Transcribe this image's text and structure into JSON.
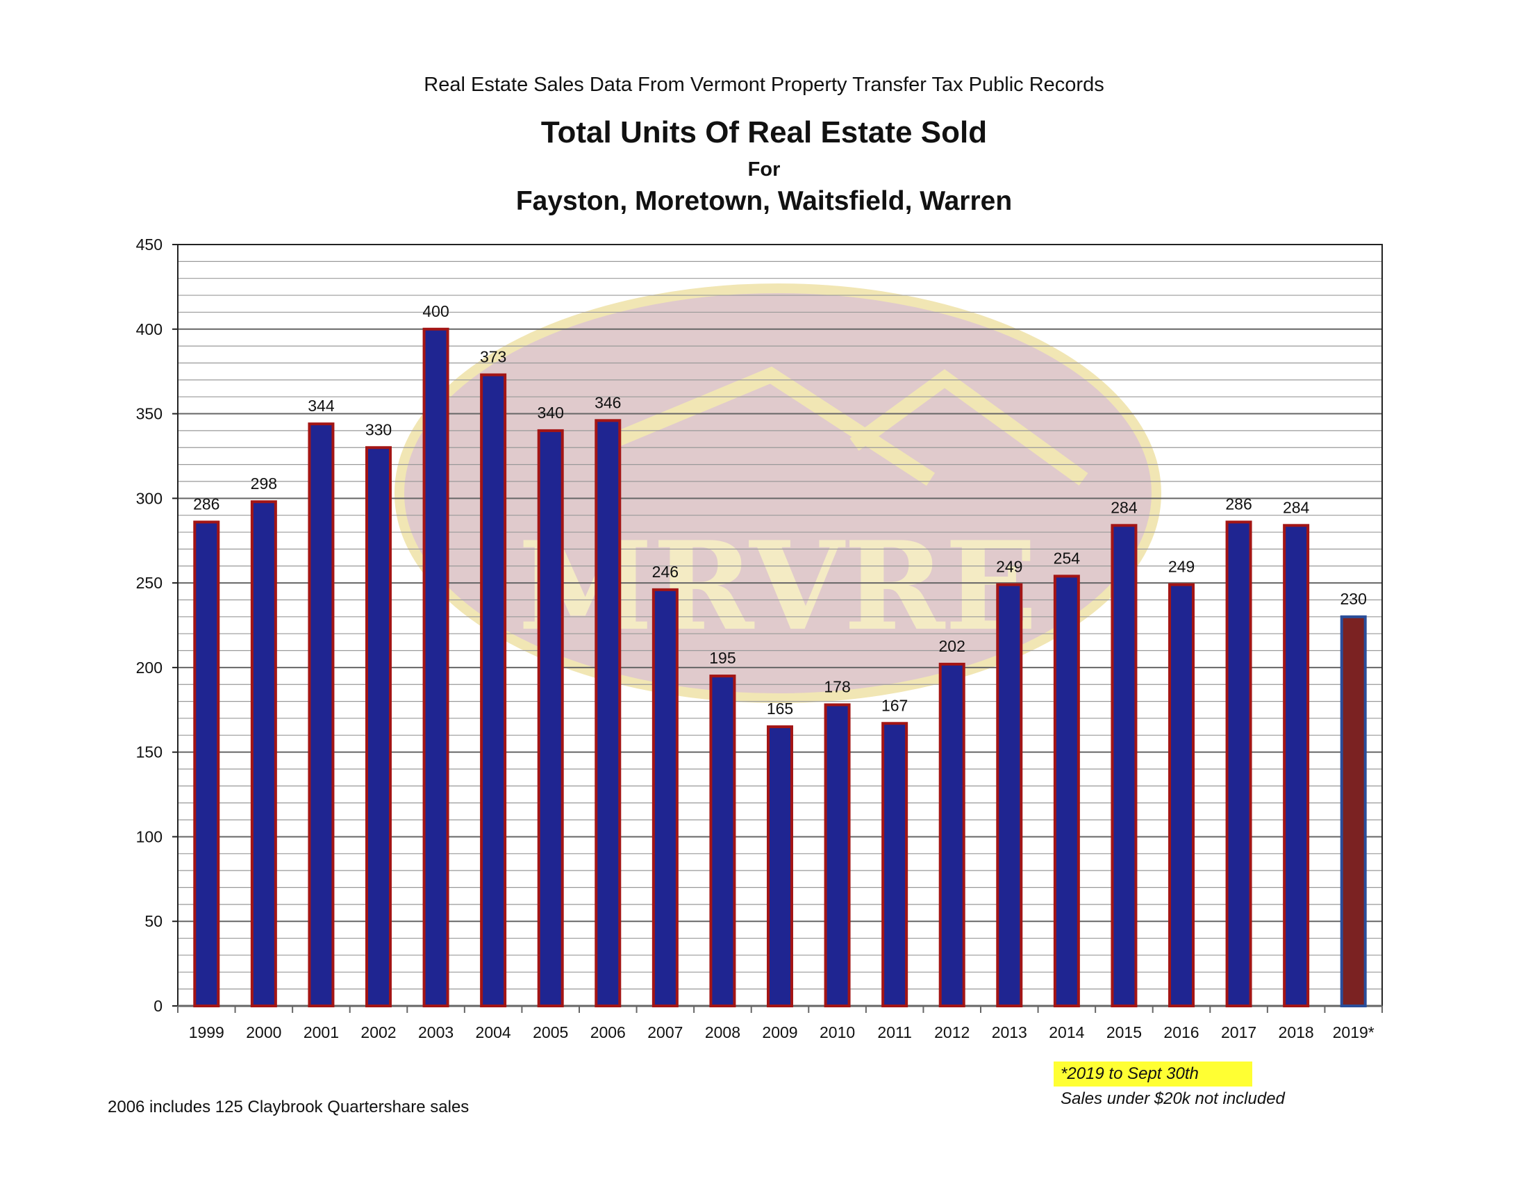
{
  "header": {
    "source": "Real Estate Sales Data From Vermont Property Transfer Tax Public Records",
    "title": "Total Units Of Real Estate Sold",
    "for_text": "For",
    "subtitle": "Fayston, Moretown, Waitsfield, Warren"
  },
  "watermark": {
    "text": "MRVRE"
  },
  "notes": {
    "left": "2006 includes 125 Claybrook Quartershare sales",
    "highlight": "*2019 to Sept 30th",
    "sales": "Sales under $20k not included"
  },
  "colors": {
    "bar_fill": "#1f2591",
    "bar_outline": "#a31515",
    "highlight_bar_fill": "#7b2222",
    "highlight_bar_outline": "#2a4e9a",
    "note_highlight": "#ffff33",
    "watermark": "#b07a7f"
  },
  "chart_data": {
    "type": "bar",
    "title": "Total Units Of Real Estate Sold",
    "subtitle": "Fayston, Moretown, Waitsfield, Warren",
    "categories": [
      "1999",
      "2000",
      "2001",
      "2002",
      "2003",
      "2004",
      "2005",
      "2006",
      "2007",
      "2008",
      "2009",
      "2010",
      "2011",
      "2012",
      "2013",
      "2014",
      "2015",
      "2016",
      "2017",
      "2018",
      "2019*"
    ],
    "values": [
      286,
      298,
      344,
      330,
      400,
      373,
      340,
      346,
      246,
      195,
      165,
      178,
      167,
      202,
      249,
      254,
      284,
      249,
      286,
      284,
      230
    ],
    "ylim": [
      0,
      450
    ],
    "y_ticks": [
      0,
      50,
      100,
      150,
      200,
      250,
      300,
      350,
      400,
      450
    ],
    "minor_step": 10,
    "grid": true,
    "data_labels": true,
    "highlight_index": 20
  }
}
